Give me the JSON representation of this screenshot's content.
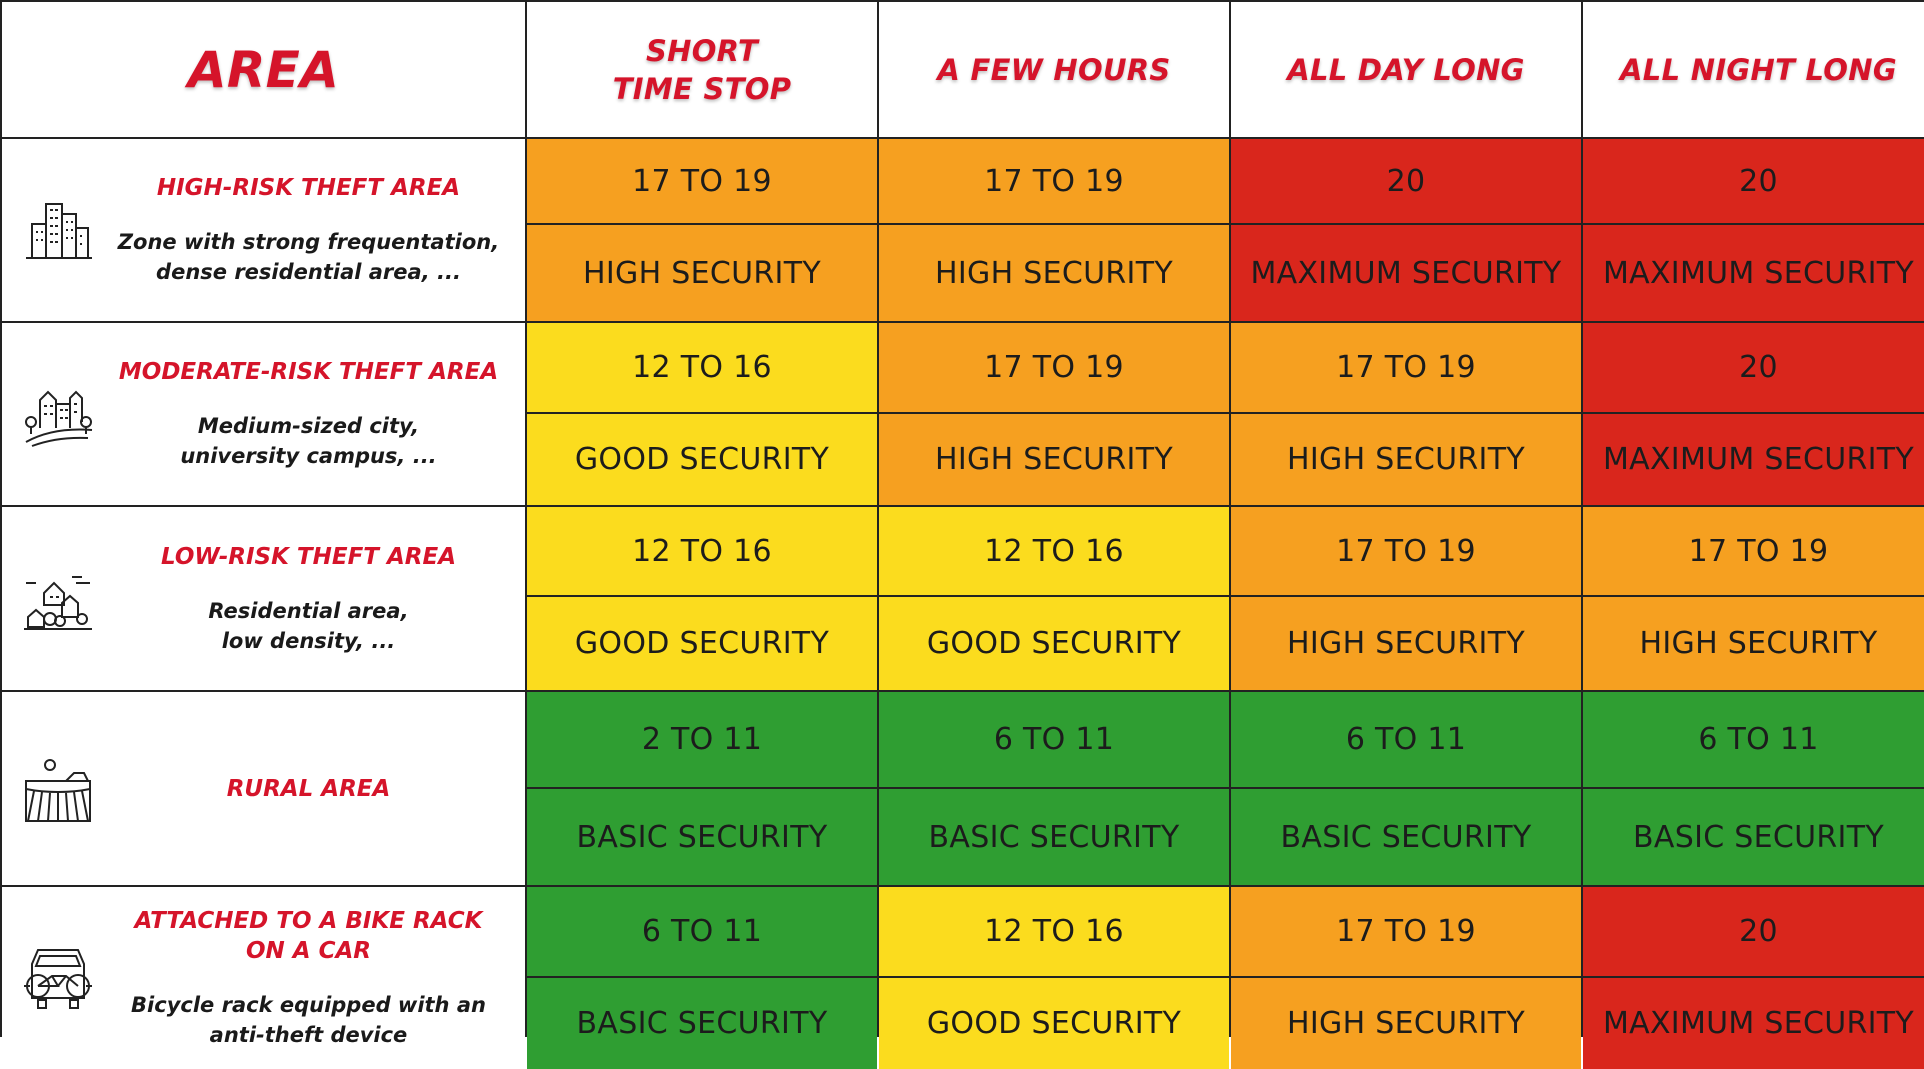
{
  "header": {
    "area": "AREA",
    "columns": [
      "SHORT\nTIME STOP",
      "A FEW HOURS",
      "ALL DAY LONG",
      "ALL NIGHT LONG"
    ]
  },
  "rows": [
    {
      "title": "HIGH-RISK THEFT AREA",
      "desc": "Zone with strong frequentation,\ndense residential area, ...",
      "icon": "city-buildings-icon",
      "ratings": [
        "17 TO 19",
        "17 TO 19",
        "20",
        "20"
      ],
      "levels": [
        "HIGH SECURITY",
        "HIGH SECURITY",
        "MAXIMUM SECURITY",
        "MAXIMUM SECURITY"
      ]
    },
    {
      "title": "MODERATE-RISK THEFT AREA",
      "desc": "Medium-sized city,\nuniversity campus, ...",
      "icon": "town-icon",
      "ratings": [
        "12 TO 16",
        "17 TO 19",
        "17 TO 19",
        "20"
      ],
      "levels": [
        "GOOD SECURITY",
        "HIGH SECURITY",
        "HIGH SECURITY",
        "MAXIMUM SECURITY"
      ]
    },
    {
      "title": "LOW-RISK THEFT AREA",
      "desc": "Residential area,\nlow density, ...",
      "icon": "village-icon",
      "ratings": [
        "12 TO 16",
        "12 TO 16",
        "17 TO 19",
        "17 TO 19"
      ],
      "levels": [
        "GOOD SECURITY",
        "GOOD SECURITY",
        "HIGH SECURITY",
        "HIGH SECURITY"
      ]
    },
    {
      "title": "RURAL AREA",
      "desc": "",
      "icon": "rural-field-icon",
      "ratings": [
        "2 TO 11",
        "6 TO 11",
        "6 TO 11",
        "6 TO 11"
      ],
      "levels": [
        "BASIC SECURITY",
        "BASIC SECURITY",
        "BASIC SECURITY",
        "BASIC SECURITY"
      ]
    },
    {
      "title": "ATTACHED TO A BIKE RACK\nON A CAR",
      "desc": "Bicycle rack equipped with an\nanti-theft device",
      "icon": "car-bike-rack-icon",
      "ratings": [
        "6 TO 11",
        "12 TO 16",
        "17 TO 19",
        "20"
      ],
      "levels": [
        "BASIC SECURITY",
        "GOOD SECURITY",
        "HIGH SECURITY",
        "MAXIMUM SECURITY"
      ]
    }
  ],
  "colors": {
    "accent": "#d5142a",
    "orange": "#f6a020",
    "red": "#d9261c",
    "yellow": "#fbdc1e",
    "green": "#2f9e32"
  }
}
